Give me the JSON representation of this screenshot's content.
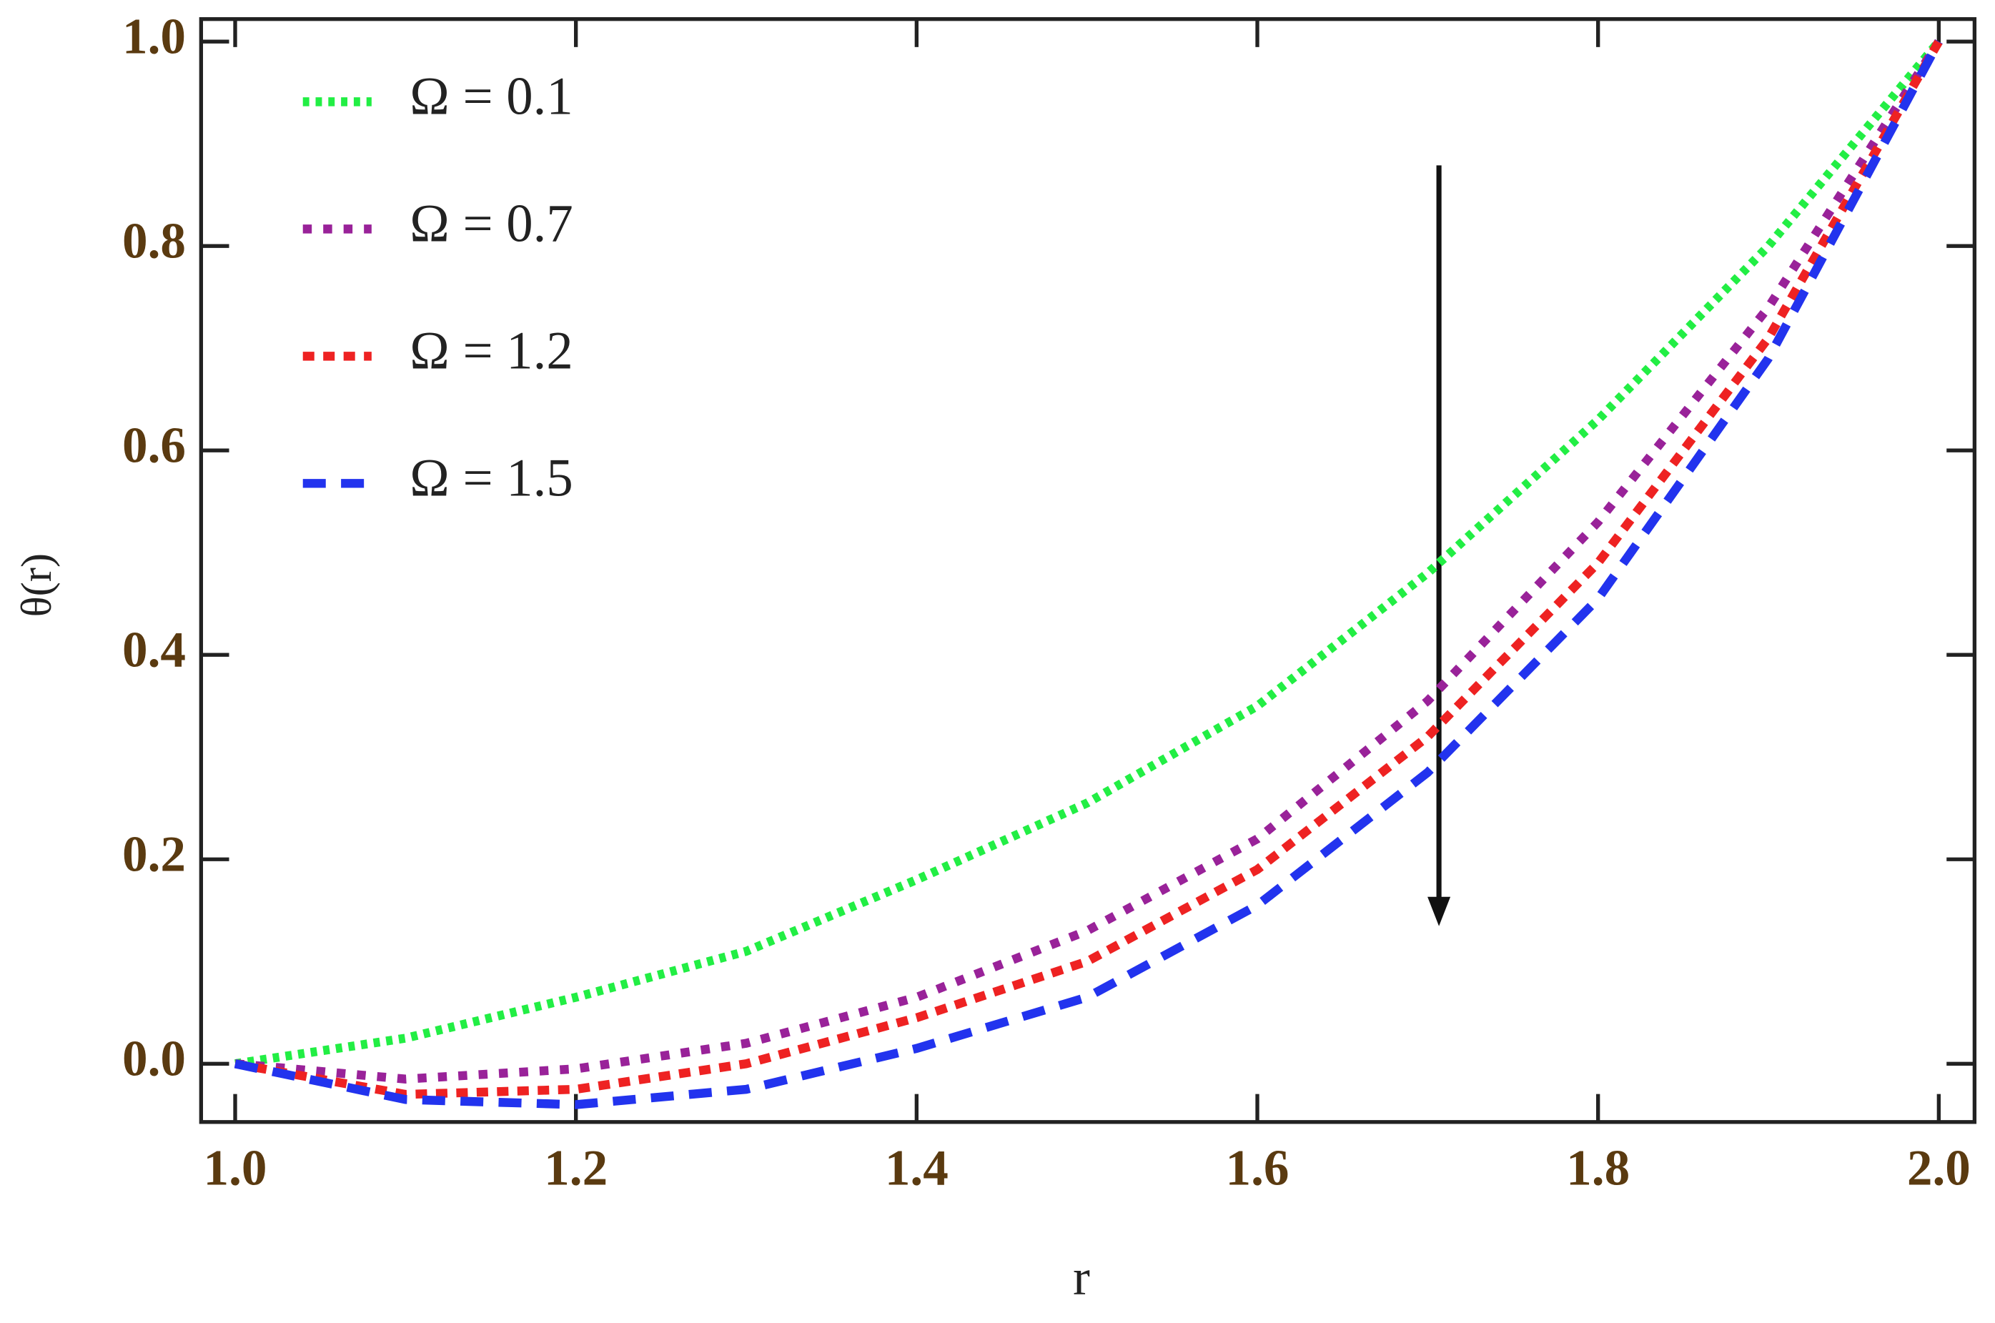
{
  "chart_data": {
    "type": "line",
    "x_label": "r",
    "y_label": "θ(r)",
    "x": [
      1.0,
      1.1,
      1.2,
      1.3,
      1.4,
      1.5,
      1.6,
      1.7,
      1.8,
      1.9,
      2.0
    ],
    "series": [
      {
        "name": "Ω = 0.1",
        "color": "#22ee44",
        "style": "dotted",
        "values": [
          0,
          0.025,
          0.065,
          0.11,
          0.18,
          0.255,
          0.35,
          0.48,
          0.63,
          0.8,
          1.0
        ]
      },
      {
        "name": "Ω = 0.7",
        "color": "#992299",
        "style": "dotted",
        "values": [
          0,
          -0.015,
          -0.005,
          0.02,
          0.065,
          0.13,
          0.22,
          0.355,
          0.53,
          0.74,
          1.0
        ]
      },
      {
        "name": "Ω = 1.2",
        "color": "#ee2222",
        "style": "dashed",
        "values": [
          0,
          -0.03,
          -0.025,
          0.0,
          0.045,
          0.1,
          0.19,
          0.32,
          0.49,
          0.71,
          1.0
        ]
      },
      {
        "name": "Ω = 1.5",
        "color": "#2233ee",
        "style": "dashed",
        "values": [
          0,
          -0.035,
          -0.04,
          -0.025,
          0.015,
          0.065,
          0.155,
          0.285,
          0.455,
          0.69,
          1.0
        ]
      }
    ],
    "xlim": [
      0.98,
      2.021
    ],
    "ylim": [
      -0.057,
      1.022
    ],
    "xticks": [
      {
        "value": 1,
        "label": "1.0"
      },
      {
        "value": 1.2,
        "label": "1.2"
      },
      {
        "value": 1.4,
        "label": "1.4"
      },
      {
        "value": 1.6,
        "label": "1.6"
      },
      {
        "value": 1.8,
        "label": "1.8"
      },
      {
        "value": 2,
        "label": "2.0"
      }
    ],
    "yticks": [
      {
        "value": 0,
        "label": "0.0"
      },
      {
        "value": 0.2,
        "label": "0.2"
      },
      {
        "value": 0.4,
        "label": "0.4"
      },
      {
        "value": 0.6,
        "label": "0.6"
      },
      {
        "value": 0.8,
        "label": "0.8"
      },
      {
        "value": 1,
        "label": "1.0"
      }
    ],
    "legend": "upper left",
    "grid": false
  }
}
